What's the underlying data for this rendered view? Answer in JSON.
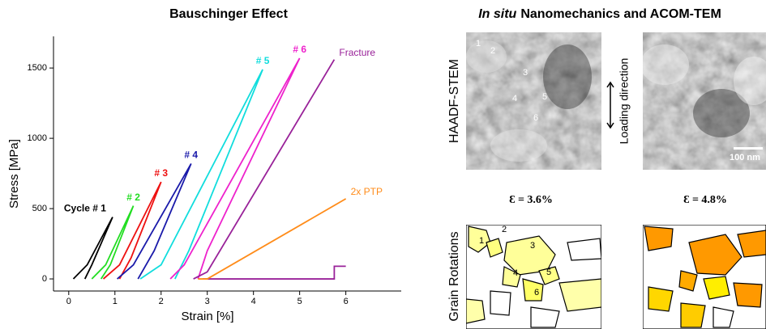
{
  "chart_data": {
    "type": "line",
    "title": "Bauschinger Effect",
    "x_label": "Strain [%]",
    "y_label": "Stress [MPa]",
    "xlim": [
      -0.33,
      7.2
    ],
    "ylim": [
      -86,
      1725
    ],
    "xticks": [
      0,
      1,
      2,
      3,
      4,
      5,
      6
    ],
    "yticks": [
      0,
      500,
      1000,
      1500
    ],
    "series": [
      {
        "name": "Cycle # 1",
        "color": "#000000",
        "x": [
          0.1,
          0.4,
          0.95,
          0.5,
          0.35
        ],
        "values": [
          0,
          100,
          440,
          100,
          0
        ]
      },
      {
        "name": "# 2",
        "color": "#22dd22",
        "x": [
          0.5,
          0.8,
          1.4,
          0.9,
          0.7
        ],
        "values": [
          0,
          100,
          520,
          100,
          0
        ]
      },
      {
        "name": "# 3",
        "color": "#ee1111",
        "x": [
          0.75,
          1.1,
          2.0,
          1.35,
          1.1
        ],
        "values": [
          0,
          100,
          690,
          150,
          0
        ]
      },
      {
        "name": "# 4",
        "color": "#1a1aaa",
        "x": [
          1.05,
          1.4,
          2.65,
          1.85,
          1.5
        ],
        "values": [
          0,
          100,
          820,
          200,
          0
        ]
      },
      {
        "name": "# 5",
        "color": "#11dddd",
        "x": [
          1.55,
          2.0,
          4.2,
          2.6,
          2.3
        ],
        "values": [
          0,
          100,
          1490,
          200,
          0
        ]
      },
      {
        "name": "# 6",
        "color": "#ee22cc",
        "x": [
          2.2,
          2.5,
          5.0,
          3.0,
          2.8
        ],
        "values": [
          0,
          100,
          1570,
          200,
          0
        ]
      },
      {
        "name": "Fracture",
        "color": "#992299",
        "x": [
          2.7,
          3.0,
          5.75,
          5.75,
          2.9,
          5.75,
          5.75,
          6.0
        ],
        "values": [
          0,
          50,
          1560,
          null,
          0,
          0,
          90,
          90
        ]
      },
      {
        "name": "2x PTP",
        "color": "#ff8c1a",
        "x": [
          2.8,
          3.0,
          6.0
        ],
        "values": [
          0,
          0,
          570
        ]
      }
    ]
  },
  "panel": {
    "title_italic": "In situ",
    "title_rest": "Nanomechanics and ACOM-TEM",
    "row_labels": [
      "HAADF-STEM",
      "Grain Rotations"
    ],
    "loading_direction": "Loading direction",
    "strains": [
      "Ɛ = 3.6%",
      "Ɛ = 4.8%"
    ],
    "scale_bar": "100 nm",
    "haadf_markers": [
      "1",
      "2",
      "3",
      "4",
      "5",
      "6"
    ],
    "grain_markers": [
      "1",
      "2",
      "3",
      "4",
      "5",
      "6"
    ]
  }
}
